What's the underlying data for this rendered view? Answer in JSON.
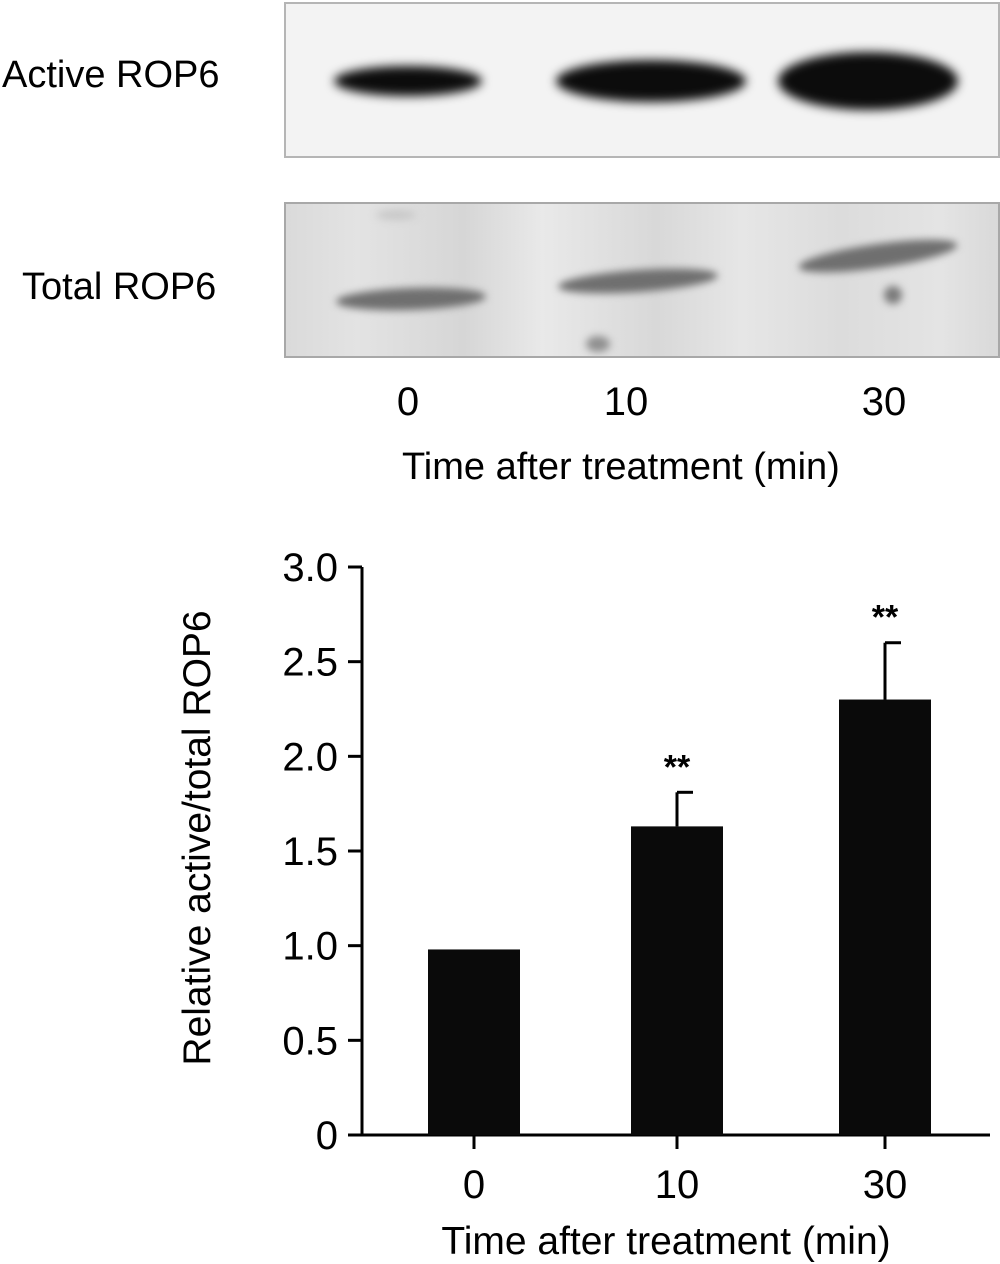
{
  "blot": {
    "rows": [
      {
        "label": "Active ROP6"
      },
      {
        "label": "Total ROP6"
      }
    ],
    "lanes": [
      "0",
      "10",
      "30"
    ],
    "xlabel": "Time after treatment (min)"
  },
  "chart_data": {
    "type": "bar",
    "categories": [
      "0",
      "10",
      "30"
    ],
    "values": [
      0.98,
      1.63,
      2.3
    ],
    "errors": [
      0.0,
      0.18,
      0.3
    ],
    "annotations": [
      "",
      "**",
      "**"
    ],
    "xlabel": "Time after treatment (min)",
    "ylabel": "Relative active/total ROP6",
    "ylim": [
      0,
      3.0
    ],
    "yticks": [
      "0",
      "0.5",
      "1.0",
      "1.5",
      "2.0",
      "2.5",
      "3.0"
    ],
    "bar_color": "#0a0a0a",
    "grid": false
  }
}
